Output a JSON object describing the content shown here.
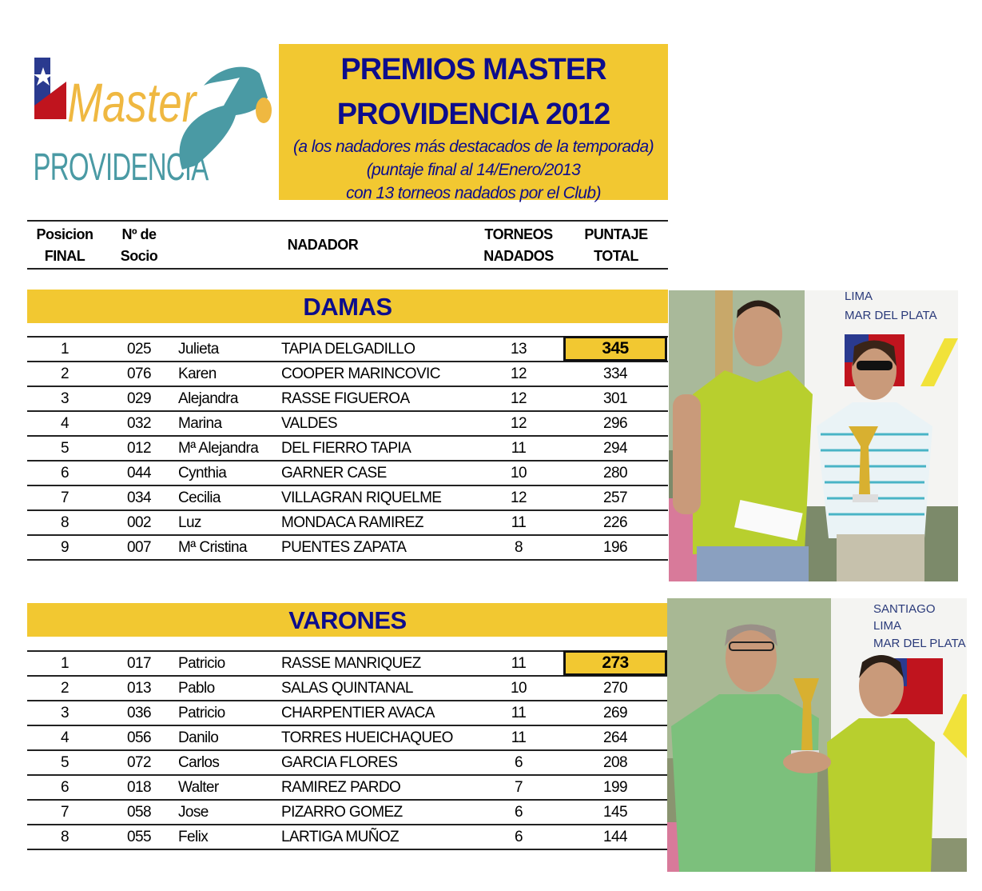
{
  "logo": {
    "word1": "Master",
    "word2": "PROVIDENCIA"
  },
  "title": {
    "line1": "PREMIOS MASTER",
    "line2": "PROVIDENCIA 2012",
    "sub1": "(a los nadadores más destacados de la temporada)",
    "sub2": "(puntaje final al 14/Enero/2013",
    "sub3": "con 13 torneos nadados por el Club)"
  },
  "header": {
    "pos1": "Posicion",
    "pos2": "FINAL",
    "soc1": "Nº de",
    "soc2": "Socio",
    "nadador": "NADADOR",
    "tor1": "TORNEOS",
    "tor2": "NADADOS",
    "pts1": "PUNTAJE",
    "pts2": "TOTAL"
  },
  "colors": {
    "accent_yellow": "#f2c831",
    "title_blue": "#0d0d8c"
  },
  "damas": {
    "label": "DAMAS",
    "rows": [
      {
        "pos": "1",
        "socio": "025",
        "first": "Julieta",
        "last": "TAPIA DELGADILLO",
        "torneos": "13",
        "puntaje": "345",
        "highlight": true
      },
      {
        "pos": "2",
        "socio": "076",
        "first": "Karen",
        "last": "COOPER MARINCOVIC",
        "torneos": "12",
        "puntaje": "334"
      },
      {
        "pos": "3",
        "socio": "029",
        "first": "Alejandra",
        "last": "RASSE FIGUEROA",
        "torneos": "12",
        "puntaje": "301"
      },
      {
        "pos": "4",
        "socio": "032",
        "first": "Marina",
        "last": "VALDES",
        "torneos": "12",
        "puntaje": "296"
      },
      {
        "pos": "5",
        "socio": "012",
        "first": "Mª Alejandra",
        "last": "DEL FIERRO TAPIA",
        "torneos": "11",
        "puntaje": "294"
      },
      {
        "pos": "6",
        "socio": "044",
        "first": "Cynthia",
        "last": "GARNER CASE",
        "torneos": "10",
        "puntaje": "280"
      },
      {
        "pos": "7",
        "socio": "034",
        "first": "Cecilia",
        "last": "VILLAGRAN RIQUELME",
        "torneos": "12",
        "puntaje": "257"
      },
      {
        "pos": "8",
        "socio": "002",
        "first": "Luz",
        "last": "MONDACA RAMIREZ",
        "torneos": "11",
        "puntaje": "226"
      },
      {
        "pos": "9",
        "socio": "007",
        "first": "Mª Cristina",
        "last": "PUENTES ZAPATA",
        "torneos": "8",
        "puntaje": "196"
      }
    ]
  },
  "varones": {
    "label": "VARONES",
    "rows": [
      {
        "pos": "1",
        "socio": "017",
        "first": "Patricio",
        "last": "RASSE MANRIQUEZ",
        "torneos": "11",
        "puntaje": "273",
        "highlight": true
      },
      {
        "pos": "2",
        "socio": "013",
        "first": "Pablo",
        "last": "SALAS  QUINTANAL",
        "torneos": "10",
        "puntaje": "270"
      },
      {
        "pos": "3",
        "socio": "036",
        "first": "Patricio",
        "last": "CHARPENTIER AVACA",
        "torneos": "11",
        "puntaje": "269"
      },
      {
        "pos": "4",
        "socio": "056",
        "first": "Danilo",
        "last": "TORRES HUEICHAQUEO",
        "torneos": "11",
        "puntaje": "264"
      },
      {
        "pos": "5",
        "socio": "072",
        "first": "Carlos",
        "last": "GARCIA FLORES",
        "torneos": "6",
        "puntaje": "208"
      },
      {
        "pos": "6",
        "socio": "018",
        "first": "Walter",
        "last": "RAMIREZ PARDO",
        "torneos": "7",
        "puntaje": "199"
      },
      {
        "pos": "7",
        "socio": "058",
        "first": "Jose",
        "last": "PIZARRO GOMEZ",
        "torneos": "6",
        "puntaje": "145"
      },
      {
        "pos": "8",
        "socio": "055",
        "first": "Felix",
        "last": "LARTIGA MUÑOZ",
        "torneos": "6",
        "puntaje": "144"
      }
    ]
  },
  "photos": {
    "damas_banner": [
      "LIMA",
      "MAR DEL PLATA"
    ],
    "varones_banner": [
      "SANTIAGO",
      "LIMA",
      "MAR DEL PLATA"
    ]
  }
}
